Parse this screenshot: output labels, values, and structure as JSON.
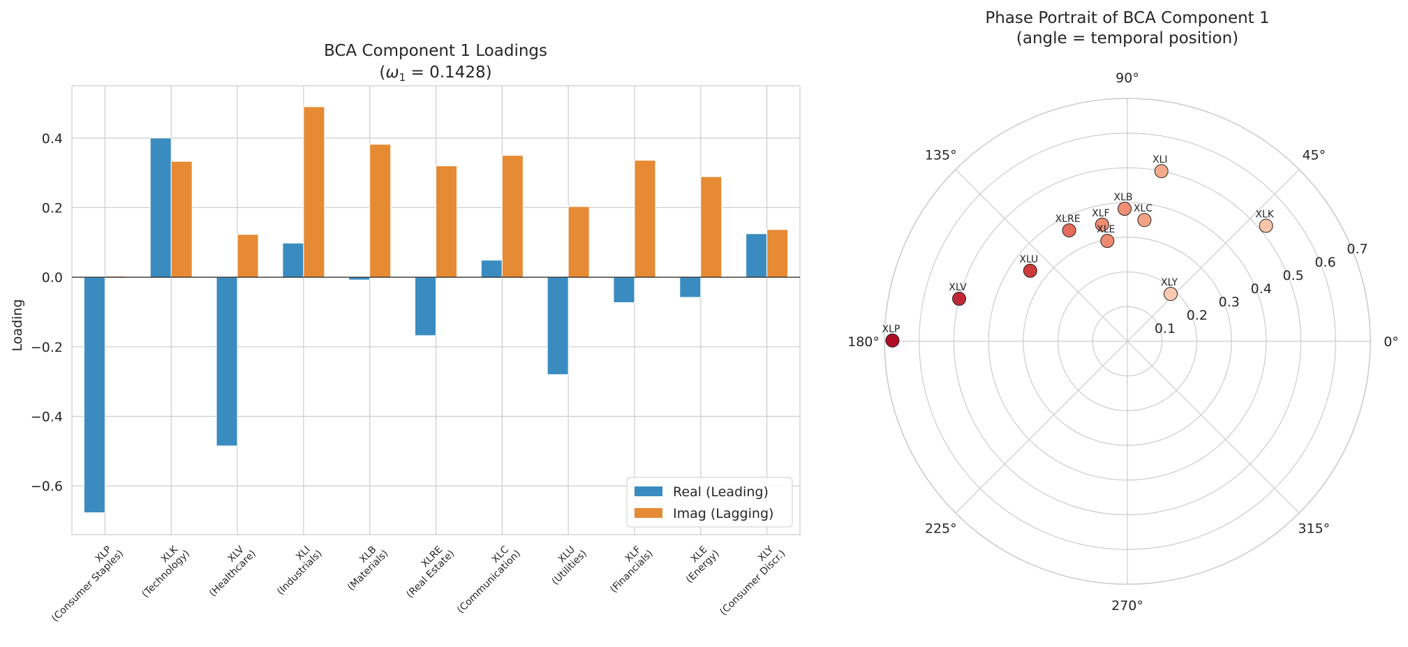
{
  "chart_data": [
    {
      "type": "bar",
      "title_line1": "BCA Component 1 Loadings",
      "title_line2_prefix": "(",
      "title_line2_symbol": "ω",
      "title_line2_subscript": "1",
      "title_line2_suffix": " = 0.1428)",
      "xlabel": "",
      "ylabel": "Loading",
      "ylim": [
        -0.74,
        0.55
      ],
      "yticks": [
        -0.6,
        -0.4,
        -0.2,
        0.0,
        0.2,
        0.4
      ],
      "ytick_labels": [
        "−0.6",
        "−0.4",
        "−0.2",
        "0.0",
        "0.2",
        "0.4"
      ],
      "grid": true,
      "legend_position": "lower-right",
      "categories": [
        "XLP",
        "XLK",
        "XLV",
        "XLI",
        "XLB",
        "XLRE",
        "XLC",
        "XLU",
        "XLF",
        "XLE",
        "XLY"
      ],
      "category_sublabels": [
        "(Consumer Staples)",
        "(Technology)",
        "(Healthcare)",
        "(Industrials)",
        "(Materials)",
        "(Real Estate)",
        "(Communication)",
        "(Utilities)",
        "(Financials)",
        "(Energy)",
        "(Consumer Discr.)"
      ],
      "series": [
        {
          "name": "Real (Leading)",
          "color": "#3a8cc0",
          "values": [
            -0.677,
            0.4,
            -0.485,
            0.098,
            -0.008,
            -0.168,
            0.049,
            -0.28,
            -0.073,
            -0.058,
            0.125
          ]
        },
        {
          "name": "Imag (Lagging)",
          "color": "#e68a33",
          "values": [
            0.003,
            0.333,
            0.123,
            0.49,
            0.382,
            0.32,
            0.35,
            0.203,
            0.336,
            0.289,
            0.137
          ]
        }
      ]
    },
    {
      "type": "scatter",
      "subtype": "polar",
      "title_line1": "Phase Portrait of BCA Component 1",
      "title_line2": "(angle = temporal position)",
      "angle_ticks": [
        "0°",
        "45°",
        "90°",
        "135°",
        "180°",
        "225°",
        "270°",
        "315°"
      ],
      "angle_values": [
        0,
        45,
        90,
        135,
        180,
        225,
        270,
        315
      ],
      "r_max": 0.7,
      "r_ticks": [
        0.1,
        0.2,
        0.3,
        0.4,
        0.5,
        0.6,
        0.7
      ],
      "r_tick_labels": [
        "0.1",
        "0.2",
        "0.3",
        "0.4",
        "0.5",
        "0.6",
        "0.7"
      ],
      "r_label_angle_deg": 22.5,
      "colormap": "magnitude (light to dark red)",
      "points": [
        {
          "label": "XLI",
          "angle_deg": 78.7,
          "r": 0.5,
          "color": "#f4ab8c"
        },
        {
          "label": "XLB",
          "angle_deg": 91.2,
          "r": 0.382,
          "color": "#ef8f73"
        },
        {
          "label": "XLC",
          "angle_deg": 82.0,
          "r": 0.353,
          "color": "#f4a485"
        },
        {
          "label": "XLK",
          "angle_deg": 39.8,
          "r": 0.52,
          "color": "#f9c4a9"
        },
        {
          "label": "XLRE",
          "angle_deg": 117.7,
          "r": 0.361,
          "color": "#e56b5a"
        },
        {
          "label": "XLF",
          "angle_deg": 102.2,
          "r": 0.344,
          "color": "#ee8c72"
        },
        {
          "label": "XLE",
          "angle_deg": 101.3,
          "r": 0.295,
          "color": "#ec8a70"
        },
        {
          "label": "XLU",
          "angle_deg": 144.0,
          "r": 0.346,
          "color": "#cd3b3b"
        },
        {
          "label": "XLV",
          "angle_deg": 165.8,
          "r": 0.5,
          "color": "#c02933"
        },
        {
          "label": "XLY",
          "angle_deg": 47.6,
          "r": 0.185,
          "color": "#f8c8af"
        },
        {
          "label": "XLP",
          "angle_deg": 179.8,
          "r": 0.677,
          "color": "#b10c26"
        }
      ]
    }
  ]
}
